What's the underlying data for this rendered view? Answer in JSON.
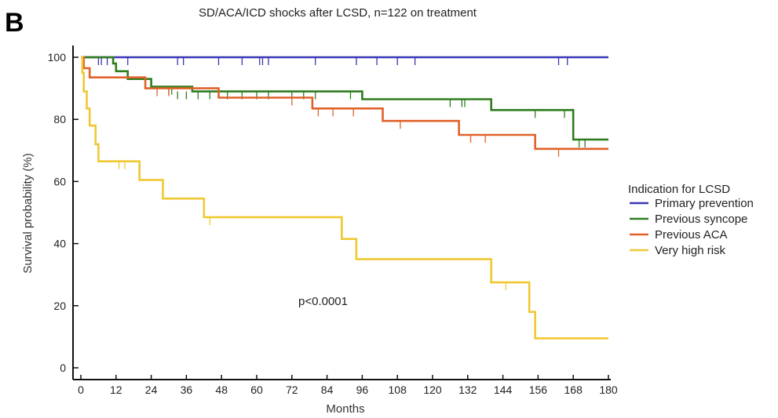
{
  "panel_letter": "B",
  "chart_data": {
    "type": "line",
    "subtype": "kaplan-meier",
    "title": "SD/ACA/ICD shocks after LCSD, n=122 on treatment",
    "xlabel": "Months",
    "ylabel": "Survival probability (%)",
    "xlim": [
      0,
      180
    ],
    "ylim": [
      0,
      100
    ],
    "xticks": [
      0,
      12,
      24,
      36,
      48,
      60,
      72,
      84,
      96,
      108,
      120,
      132,
      144,
      156,
      168,
      180
    ],
    "yticks": [
      0,
      20,
      40,
      60,
      80,
      100
    ],
    "grid": false,
    "legend": {
      "title": "Indication for LCSD",
      "position": "right"
    },
    "annotation": "p<0.0001",
    "series": [
      {
        "name": "Primary prevention",
        "color": "#3b36b4",
        "steps": [
          [
            0,
            100
          ],
          [
            180,
            100
          ]
        ],
        "censored": [
          [
            6,
            100
          ],
          [
            7,
            100
          ],
          [
            9,
            100
          ],
          [
            16,
            100
          ],
          [
            33,
            100
          ],
          [
            35,
            100
          ],
          [
            47,
            100
          ],
          [
            55,
            100
          ],
          [
            61,
            100
          ],
          [
            62,
            100
          ],
          [
            64,
            100
          ],
          [
            80,
            100
          ],
          [
            94,
            100
          ],
          [
            101,
            100
          ],
          [
            108,
            100
          ],
          [
            114,
            100
          ],
          [
            163,
            100
          ],
          [
            166,
            100
          ]
        ]
      },
      {
        "name": "Previous syncope",
        "color": "#2e7d1f",
        "steps": [
          [
            0,
            100
          ],
          [
            11,
            100
          ],
          [
            11,
            98
          ],
          [
            12,
            98
          ],
          [
            12,
            95.5
          ],
          [
            16,
            95.5
          ],
          [
            16,
            93
          ],
          [
            24,
            93
          ],
          [
            24,
            90.5
          ],
          [
            38,
            90.5
          ],
          [
            38,
            89
          ],
          [
            96,
            89
          ],
          [
            96,
            86.5
          ],
          [
            140,
            86.5
          ],
          [
            140,
            83
          ],
          [
            168,
            83
          ],
          [
            168,
            73.5
          ],
          [
            180,
            73.5
          ]
        ],
        "censored": [
          [
            30,
            90.5
          ],
          [
            31,
            90.5
          ],
          [
            33,
            89
          ],
          [
            36,
            89
          ],
          [
            40,
            89
          ],
          [
            44,
            89
          ],
          [
            50,
            89
          ],
          [
            55,
            89
          ],
          [
            60,
            89
          ],
          [
            64,
            89
          ],
          [
            72,
            89
          ],
          [
            76,
            89
          ],
          [
            80,
            89
          ],
          [
            92,
            89
          ],
          [
            126,
            86.5
          ],
          [
            130,
            86.5
          ],
          [
            131,
            86.5
          ],
          [
            155,
            83
          ],
          [
            165,
            83
          ],
          [
            170,
            73.5
          ],
          [
            172,
            73.5
          ]
        ]
      },
      {
        "name": "Previous ACA",
        "color": "#e0622a",
        "steps": [
          [
            0,
            100
          ],
          [
            1,
            100
          ],
          [
            1,
            96.5
          ],
          [
            3,
            96.5
          ],
          [
            3,
            93.5
          ],
          [
            22,
            93.5
          ],
          [
            22,
            90
          ],
          [
            47,
            90
          ],
          [
            47,
            87
          ],
          [
            79,
            87
          ],
          [
            79,
            83.5
          ],
          [
            103,
            83.5
          ],
          [
            103,
            79.5
          ],
          [
            129,
            79.5
          ],
          [
            129,
            75
          ],
          [
            155,
            75
          ],
          [
            155,
            70.5
          ],
          [
            180,
            70.5
          ]
        ],
        "censored": [
          [
            26,
            90
          ],
          [
            30,
            90
          ],
          [
            72,
            87
          ],
          [
            81,
            83.5
          ],
          [
            86,
            83.5
          ],
          [
            93,
            83.5
          ],
          [
            109,
            79.5
          ],
          [
            133,
            75
          ],
          [
            138,
            75
          ],
          [
            163,
            70.5
          ]
        ]
      },
      {
        "name": "Very high risk",
        "color": "#f0c832",
        "steps": [
          [
            0,
            100
          ],
          [
            0.5,
            100
          ],
          [
            0.5,
            95
          ],
          [
            1,
            95
          ],
          [
            1,
            89
          ],
          [
            2,
            89
          ],
          [
            2,
            83.5
          ],
          [
            3,
            83.5
          ],
          [
            3,
            78
          ],
          [
            5,
            78
          ],
          [
            5,
            72
          ],
          [
            6,
            72
          ],
          [
            6,
            66.5
          ],
          [
            20,
            66.5
          ],
          [
            20,
            60.5
          ],
          [
            28,
            60.5
          ],
          [
            28,
            54.5
          ],
          [
            42,
            54.5
          ],
          [
            42,
            48.5
          ],
          [
            89,
            48.5
          ],
          [
            89,
            41.5
          ],
          [
            94,
            41.5
          ],
          [
            94,
            35
          ],
          [
            140,
            35
          ],
          [
            140,
            27.5
          ],
          [
            153,
            27.5
          ],
          [
            153,
            18
          ],
          [
            155,
            18
          ],
          [
            155,
            9.5
          ],
          [
            180,
            9.5
          ]
        ],
        "censored": [
          [
            13,
            66.5
          ],
          [
            15,
            66.5
          ],
          [
            44,
            48.5
          ],
          [
            145,
            27.5
          ]
        ]
      }
    ]
  }
}
